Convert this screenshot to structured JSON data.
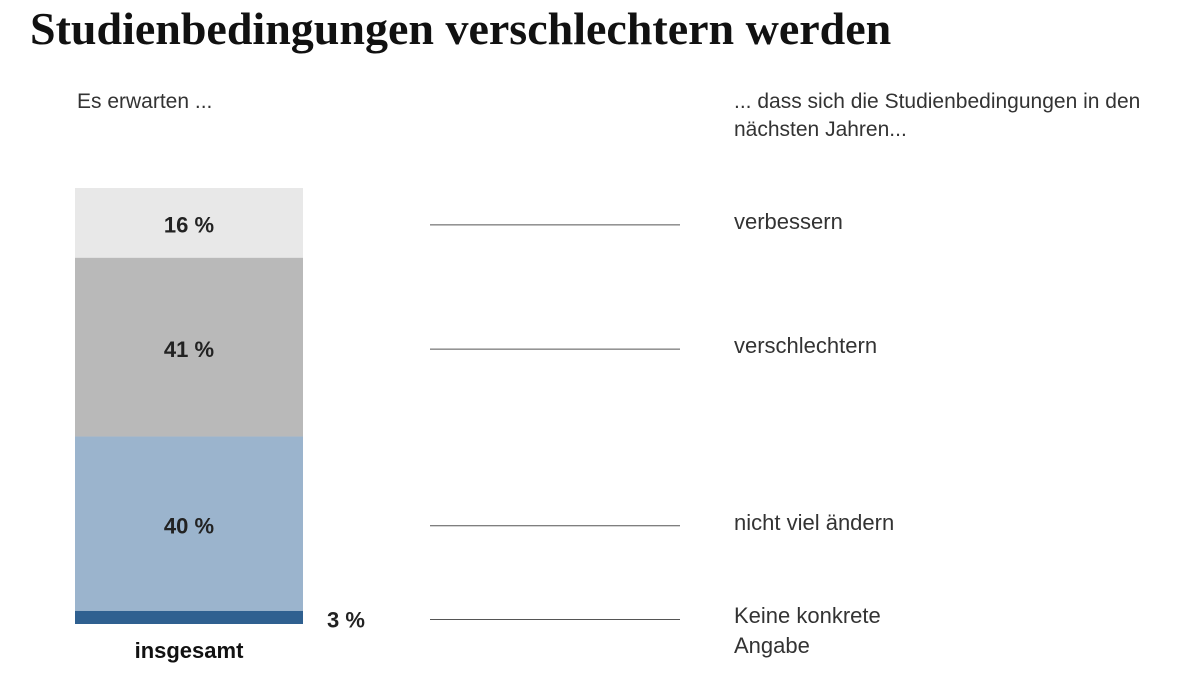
{
  "chart_data": {
    "type": "stacked_bar",
    "title": "Studienbedingungen verschlechtern werden",
    "left_header": "Es erwarten ...",
    "right_header": "... dass sich die Studienbedingungen in den nächsten Jahren...",
    "categories": [
      "insgesamt"
    ],
    "series": [
      {
        "name": "verbessern",
        "color": "#e8e8e8",
        "values": [
          16
        ],
        "value_labels": [
          "16 %"
        ]
      },
      {
        "name": "verschlechtern",
        "color": "#b9b9b9",
        "values": [
          41
        ],
        "value_labels": [
          "41 %"
        ]
      },
      {
        "name": "nicht viel ändern",
        "color": "#9bb4cd",
        "values": [
          40
        ],
        "value_labels": [
          "40 %"
        ]
      },
      {
        "name": "Keine konkrete Angabe",
        "color": "#2f6090",
        "values": [
          3
        ],
        "value_labels": [
          "3 %"
        ]
      }
    ]
  }
}
